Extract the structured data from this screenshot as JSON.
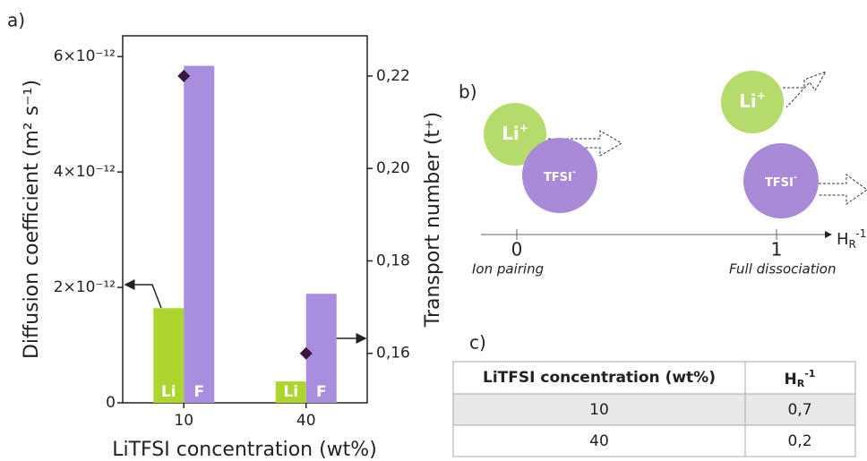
{
  "chart_data": {
    "type": "bar",
    "panel_label": "a)",
    "x_label": "LiTFSI concentration (wt%)",
    "y_label": "Diffusion coefficient (m² s⁻¹)",
    "y2_label": "Transport number (t⁺)",
    "categories": [
      "10",
      "40"
    ],
    "series": [
      {
        "name": "Li",
        "color": "#acd52e",
        "values": [
          1.64e-12,
          3.7e-13
        ]
      },
      {
        "name": "F",
        "color": "#a98ee0",
        "values": [
          5.84e-12,
          1.89e-12
        ]
      },
      {
        "name": "Transport number",
        "type": "scatter",
        "axis": "y2",
        "color": "#3c1640",
        "values": [
          0.22,
          0.16
        ]
      }
    ],
    "ylim": [
      0,
      6.36e-12
    ],
    "yticks": [
      0,
      {
        "value": 2e-12,
        "label": "2×10⁻¹²"
      },
      {
        "value": 4e-12,
        "label": "4×10⁻¹²"
      },
      {
        "value": 6e-12,
        "label": "6×10⁻¹²"
      }
    ],
    "y2lim": [
      0.1493,
      0.2287
    ],
    "y2ticks": [
      {
        "value": 0.16,
        "label": "0,16"
      },
      {
        "value": 0.18,
        "label": "0,18"
      },
      {
        "value": 0.2,
        "label": "0,20"
      },
      {
        "value": 0.22,
        "label": "0,22"
      }
    ]
  },
  "diagram": {
    "panel_label": "b)",
    "li": {
      "base": "Li",
      "sup": "+"
    },
    "tfsi": {
      "base": "TFSI",
      "sup": "-"
    },
    "axis_label": {
      "base": "H",
      "sub": "R",
      "sup": "-1"
    },
    "ticks": [
      "0",
      "1"
    ],
    "tick_captions": [
      "Ion pairing",
      "Full dissociation"
    ]
  },
  "table": {
    "panel_label": "c)",
    "header": [
      "LiTFSI concentration (wt%)",
      {
        "base": "H",
        "sub": "R",
        "sup": "-1"
      }
    ],
    "rows": [
      [
        "10",
        "0,7"
      ],
      [
        "40",
        "0,2"
      ]
    ]
  }
}
